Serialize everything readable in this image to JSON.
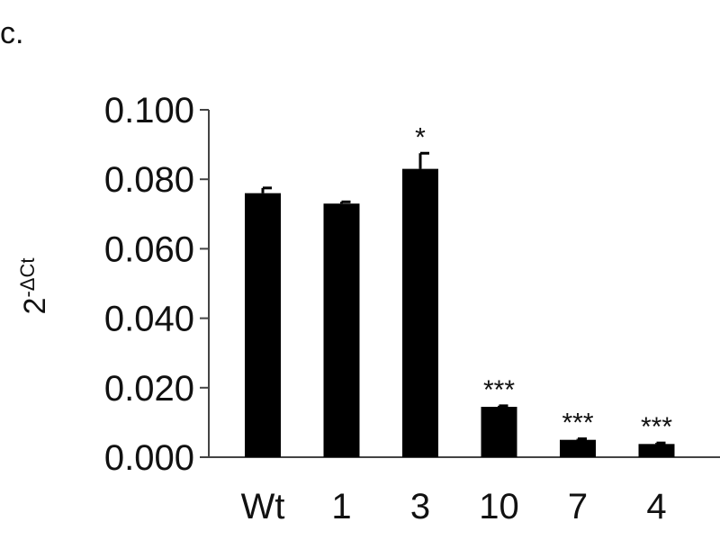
{
  "panel_label": "c.",
  "chart_data": {
    "type": "bar",
    "categories": [
      "Wt",
      "1",
      "3",
      "10",
      "7",
      "4"
    ],
    "values": [
      0.076,
      0.073,
      0.083,
      0.0145,
      0.005,
      0.0038
    ],
    "errors": [
      0.0015,
      0.0005,
      0.0045,
      0.0003,
      0.0003,
      0.0003
    ],
    "significance": [
      "",
      "",
      "*",
      "***",
      "***",
      "***"
    ],
    "ylabel": {
      "base": "2",
      "superscript": "-ΔCt"
    },
    "ylim": [
      0,
      0.1
    ],
    "yticks": [
      0,
      0.02,
      0.04,
      0.06,
      0.08,
      0.1
    ],
    "ytick_labels": [
      "0.000",
      "0.020",
      "0.040",
      "0.060",
      "0.080",
      "0.100"
    ],
    "bar_color": "#000000",
    "grid": false,
    "legend": "none"
  }
}
